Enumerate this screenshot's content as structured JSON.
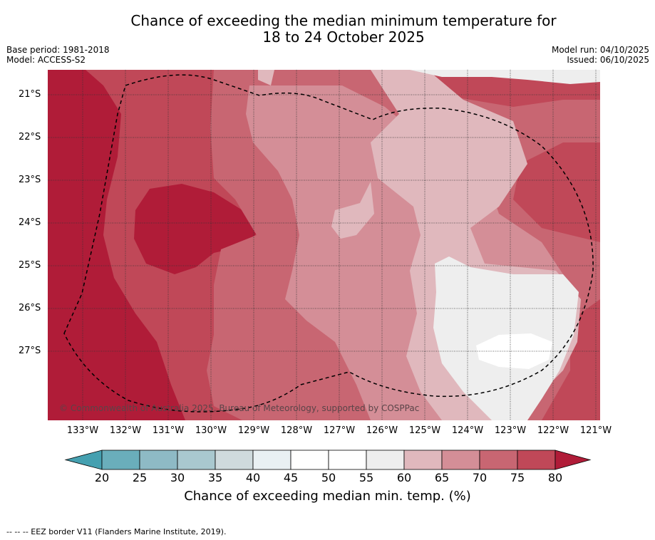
{
  "title_line1": "Chance of exceeding the median minimum temperature for",
  "title_line2": "18 to 24 October 2025",
  "base_period": "Base period: 1981-2018",
  "model": "Model: ACCESS-S2",
  "model_run": "Model run: 04/10/2025",
  "issued": "Issued: 06/10/2025",
  "lat_labels": [
    "21°S",
    "22°S",
    "23°S",
    "24°S",
    "25°S",
    "26°S",
    "27°S"
  ],
  "lon_labels": [
    "133°W",
    "132°W",
    "131°W",
    "130°W",
    "129°W",
    "128°W",
    "127°W",
    "126°W",
    "125°W",
    "124°W",
    "123°W",
    "122°W",
    "121°W"
  ],
  "copyright": "© Commonwealth of Australia 2025, Bureau of Meteorology, supported by COSPPac",
  "colorbar": {
    "ticks": [
      "20",
      "25",
      "30",
      "35",
      "40",
      "45",
      "50",
      "55",
      "60",
      "65",
      "70",
      "75",
      "80"
    ],
    "label": "Chance of exceeding median min. temp. (%)",
    "colors": [
      "#6aaebb",
      "#8ebac5",
      "#a9c8cf",
      "#cfdadd",
      "#e9f0f3",
      "#ffffff",
      "#ffffff",
      "#eeeeee",
      "#e0b8bd",
      "#d48e97",
      "#c86672",
      "#c04858"
    ],
    "low_color": "#45a0b0",
    "high_color": "#b01c38"
  },
  "legend": "-- -- -- EEZ border V11 (Flanders Marine Institute, 2019)."
}
